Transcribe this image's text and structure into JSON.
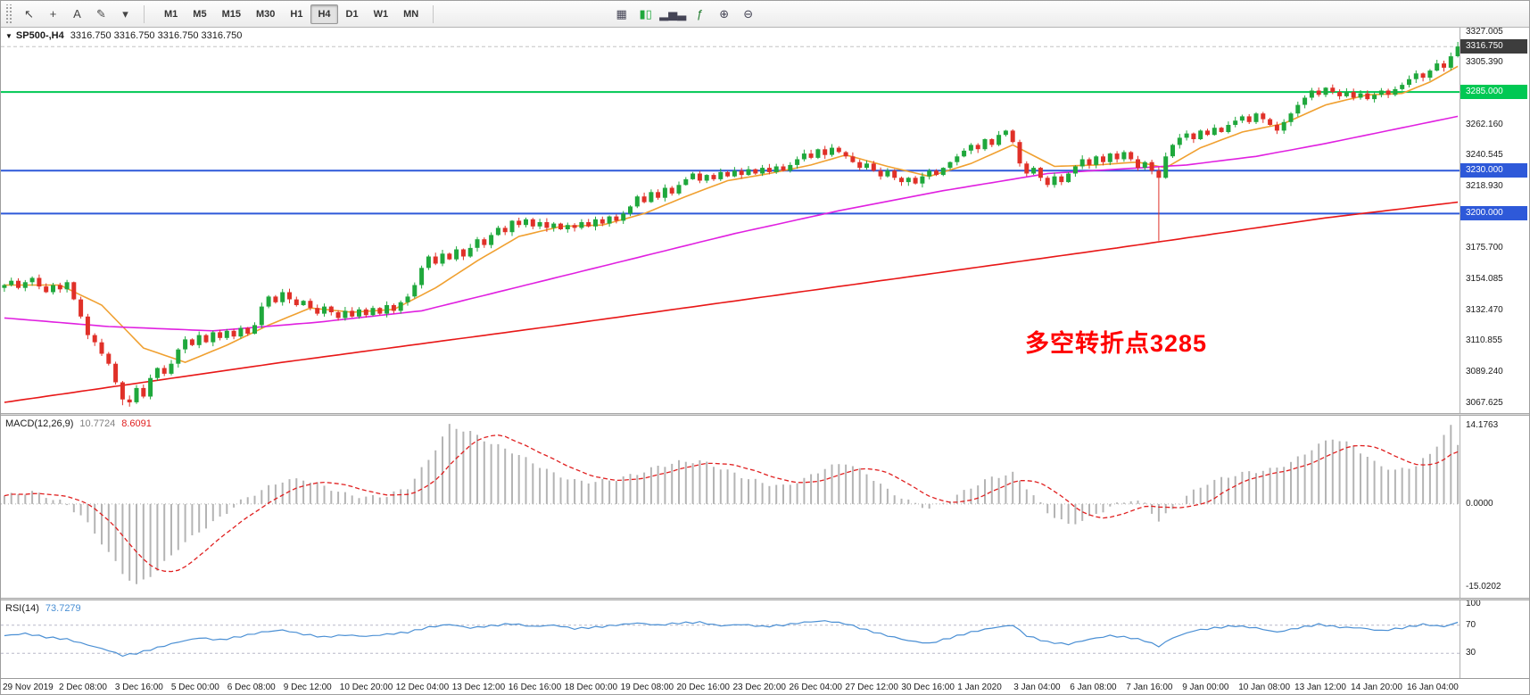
{
  "toolbar": {
    "left_tools": [
      {
        "name": "cursor-icon",
        "glyph": "↖"
      },
      {
        "name": "crosshair-icon",
        "glyph": "+"
      },
      {
        "name": "text-label-icon",
        "glyph": "A"
      },
      {
        "name": "draw-tools-icon",
        "glyph": "✎"
      },
      {
        "name": "dropdown-icon",
        "glyph": "▾"
      }
    ],
    "timeframes": [
      {
        "label": "M1"
      },
      {
        "label": "M5"
      },
      {
        "label": "M15"
      },
      {
        "label": "M30"
      },
      {
        "label": "H1"
      },
      {
        "label": "H4",
        "active": true
      },
      {
        "label": "D1"
      },
      {
        "label": "W1"
      },
      {
        "label": "MN"
      }
    ],
    "right_tools": [
      {
        "name": "tile-windows-icon",
        "glyph": "▦",
        "color": "#445"
      },
      {
        "name": "candlestick-chart-icon",
        "glyph": "▮▯",
        "color": "#1fa83c"
      },
      {
        "name": "bar-chart-icon",
        "glyph": "▂▅▃",
        "color": "#445"
      },
      {
        "name": "indicators-icon",
        "glyph": "ƒ",
        "color": "#1f7a2c"
      },
      {
        "name": "zoom-in-icon",
        "glyph": "⊕",
        "color": "#445"
      },
      {
        "name": "zoom-out-icon",
        "glyph": "⊖",
        "color": "#445"
      }
    ]
  },
  "price_panel": {
    "symbol": "SP500-,H4",
    "ohlc": "3316.750 3316.750 3316.750 3316.750",
    "annotation": "多空转折点3285",
    "annotation_color": "#ff0000"
  },
  "macd_panel": {
    "name": "MACD(12,26,9)",
    "value_main": "10.7724",
    "value_signal": "8.6091"
  },
  "rsi_panel": {
    "name": "RSI(14)",
    "value": "73.7279"
  },
  "chart_data": {
    "type": "candlestick+indicators",
    "symbol": "SP500-",
    "timeframe": "H4",
    "time_labels": [
      "29 Nov 2019",
      "2 Dec 08:00",
      "3 Dec 16:00",
      "5 Dec 00:00",
      "6 Dec 08:00",
      "9 Dec 12:00",
      "10 Dec 20:00",
      "12 Dec 04:00",
      "13 Dec 12:00",
      "16 Dec 16:00",
      "18 Dec 00:00",
      "19 Dec 08:00",
      "20 Dec 16:00",
      "23 Dec 20:00",
      "26 Dec 04:00",
      "27 Dec 12:00",
      "30 Dec 16:00",
      "1 Jan 2020",
      "3 Jan 04:00",
      "6 Jan 08:00",
      "7 Jan 16:00",
      "9 Jan 00:00",
      "10 Jan 08:00",
      "13 Jan 12:00",
      "14 Jan 20:00",
      "16 Jan 04:00"
    ],
    "price": {
      "ylim": [
        3060.5,
        3330
      ],
      "first_open": 3148,
      "closes": [
        3150,
        3153,
        3148,
        3152,
        3155,
        3149,
        3145,
        3150,
        3147,
        3152,
        3140,
        3128,
        3115,
        3110,
        3102,
        3095,
        3082,
        3070,
        3068,
        3078,
        3072,
        3085,
        3092,
        3088,
        3095,
        3105,
        3112,
        3108,
        3115,
        3110,
        3117,
        3113,
        3118,
        3114,
        3120,
        3116,
        3122,
        3135,
        3142,
        3138,
        3145,
        3140,
        3136,
        3139,
        3134,
        3130,
        3135,
        3131,
        3127,
        3132,
        3128,
        3133,
        3129,
        3134,
        3130,
        3136,
        3132,
        3138,
        3142,
        3150,
        3162,
        3170,
        3165,
        3172,
        3168,
        3175,
        3170,
        3176,
        3182,
        3178,
        3185,
        3190,
        3187,
        3195,
        3192,
        3196,
        3191,
        3194,
        3190,
        3193,
        3189,
        3192,
        3190,
        3194,
        3191,
        3196,
        3193,
        3198,
        3195,
        3200,
        3205,
        3212,
        3208,
        3215,
        3211,
        3218,
        3214,
        3220,
        3224,
        3228,
        3223,
        3227,
        3224,
        3229,
        3226,
        3230,
        3227,
        3231,
        3228,
        3232,
        3229,
        3233,
        3230,
        3234,
        3238,
        3242,
        3239,
        3245,
        3241,
        3246,
        3243,
        3240,
        3236,
        3232,
        3235,
        3230,
        3226,
        3230,
        3225,
        3222,
        3225,
        3221,
        3226,
        3230,
        3227,
        3232,
        3236,
        3240,
        3244,
        3248,
        3245,
        3252,
        3248,
        3255,
        3258,
        3250,
        3235,
        3228,
        3232,
        3225,
        3220,
        3226,
        3222,
        3228,
        3233,
        3238,
        3234,
        3240,
        3236,
        3242,
        3238,
        3243,
        3238,
        3232,
        3236,
        3230,
        3225,
        3240,
        3248,
        3253,
        3256,
        3252,
        3258,
        3255,
        3260,
        3257,
        3262,
        3265,
        3268,
        3264,
        3270,
        3266,
        3262,
        3258,
        3264,
        3270,
        3276,
        3281,
        3286,
        3283,
        3288,
        3285,
        3282,
        3285,
        3281,
        3284,
        3280,
        3283,
        3286,
        3283,
        3287,
        3290,
        3294,
        3298,
        3295,
        3300,
        3305,
        3302,
        3310,
        3316.75
      ],
      "special_lows": {
        "17": 3066,
        "18": 3065,
        "166": 3181
      },
      "special_highs": {
        "209": 3320
      },
      "up_color": "#1fa83c",
      "down_color": "#e03028",
      "scale_ticks": [
        "3327.005",
        "3305.390",
        "3283.775",
        "3262.160",
        "3240.545",
        "3218.930",
        "3197.315",
        "3175.700",
        "3154.085",
        "3132.470",
        "3110.855",
        "3089.240",
        "3067.625"
      ],
      "current_price": {
        "value": 3316.75,
        "label": "3316.750",
        "color": "#3d3d3d"
      },
      "hlines": [
        {
          "value": 3285,
          "label": "3285.000",
          "color": "#00c853"
        },
        {
          "value": 3230,
          "label": "3230.000",
          "color": "#2e59d9"
        },
        {
          "value": 3200,
          "label": "3200.000",
          "color": "#2e59d9"
        }
      ],
      "ma_lines": [
        {
          "name": "ma-fast",
          "color": "#f0a030",
          "anchors": [
            [
              0,
              3150
            ],
            [
              8,
              3150
            ],
            [
              14,
              3136
            ],
            [
              20,
              3106
            ],
            [
              26,
              3096
            ],
            [
              32,
              3108
            ],
            [
              38,
              3122
            ],
            [
              44,
              3134
            ],
            [
              50,
              3131
            ],
            [
              56,
              3133
            ],
            [
              62,
              3148
            ],
            [
              68,
              3167
            ],
            [
              74,
              3184
            ],
            [
              80,
              3191
            ],
            [
              86,
              3192
            ],
            [
              92,
              3200
            ],
            [
              98,
              3212
            ],
            [
              104,
              3223
            ],
            [
              110,
              3228
            ],
            [
              116,
              3234
            ],
            [
              121,
              3241
            ],
            [
              127,
              3233
            ],
            [
              133,
              3226
            ],
            [
              139,
              3235
            ],
            [
              145,
              3248
            ],
            [
              151,
              3233
            ],
            [
              157,
              3234
            ],
            [
              163,
              3236
            ],
            [
              167,
              3232
            ],
            [
              172,
              3246
            ],
            [
              178,
              3257
            ],
            [
              184,
              3263
            ],
            [
              190,
              3276
            ],
            [
              196,
              3283
            ],
            [
              201,
              3284
            ],
            [
              205,
              3292
            ],
            [
              209,
              3303
            ]
          ]
        },
        {
          "name": "ma-medium",
          "color": "#e020e0",
          "anchors": [
            [
              0,
              3127
            ],
            [
              15,
              3121
            ],
            [
              30,
              3118
            ],
            [
              45,
              3124
            ],
            [
              60,
              3132
            ],
            [
              75,
              3150
            ],
            [
              90,
              3168
            ],
            [
              105,
              3186
            ],
            [
              120,
              3202
            ],
            [
              135,
              3216
            ],
            [
              150,
              3228
            ],
            [
              160,
              3231
            ],
            [
              170,
              3234
            ],
            [
              180,
              3240
            ],
            [
              190,
              3249
            ],
            [
              200,
              3259
            ],
            [
              209,
              3268
            ]
          ]
        },
        {
          "name": "ma-slow",
          "color": "#e81717",
          "anchors": [
            [
              0,
              3068
            ],
            [
              40,
              3096
            ],
            [
              80,
              3122
            ],
            [
              120,
              3149
            ],
            [
              160,
              3176
            ],
            [
              190,
              3197
            ],
            [
              209,
              3208
            ]
          ]
        }
      ]
    },
    "macd": {
      "ylim": [
        -17,
        16
      ],
      "hist_color": "#b4b4b4",
      "signal_color": "#e02020",
      "scale": [
        {
          "value": 14.1763,
          "label": "14.1763"
        },
        {
          "value": 0,
          "label": "0.0000"
        },
        {
          "value": -15.0202,
          "label": "-15.0202"
        }
      ],
      "anchors": [
        [
          0,
          1.5
        ],
        [
          4,
          2.2
        ],
        [
          8,
          0.5
        ],
        [
          11,
          -2
        ],
        [
          14,
          -7
        ],
        [
          17,
          -12.5
        ],
        [
          19,
          -14.8
        ],
        [
          22,
          -12
        ],
        [
          25,
          -8
        ],
        [
          28,
          -5
        ],
        [
          31,
          -2.5
        ],
        [
          34,
          0.5
        ],
        [
          37,
          2.5
        ],
        [
          40,
          4.2
        ],
        [
          43,
          4.5
        ],
        [
          46,
          3.2
        ],
        [
          49,
          1.8
        ],
        [
          52,
          1.2
        ],
        [
          55,
          1.5
        ],
        [
          58,
          3
        ],
        [
          61,
          8
        ],
        [
          64,
          14.2
        ],
        [
          67,
          13
        ],
        [
          70,
          11
        ],
        [
          73,
          9.5
        ],
        [
          76,
          7.5
        ],
        [
          79,
          5.5
        ],
        [
          82,
          4.2
        ],
        [
          85,
          4
        ],
        [
          88,
          4.5
        ],
        [
          91,
          5.5
        ],
        [
          94,
          6.8
        ],
        [
          97,
          7.6
        ],
        [
          100,
          7.8
        ],
        [
          103,
          6.5
        ],
        [
          106,
          5
        ],
        [
          109,
          3.8
        ],
        [
          112,
          3.2
        ],
        [
          115,
          4.5
        ],
        [
          118,
          6.5
        ],
        [
          121,
          7.5
        ],
        [
          124,
          5.5
        ],
        [
          127,
          2.5
        ],
        [
          130,
          0.5
        ],
        [
          133,
          -0.8
        ],
        [
          136,
          0.8
        ],
        [
          139,
          3
        ],
        [
          142,
          4.8
        ],
        [
          145,
          5.5
        ],
        [
          147,
          3
        ],
        [
          150,
          -1.5
        ],
        [
          153,
          -3.8
        ],
        [
          156,
          -2.5
        ],
        [
          159,
          -0.5
        ],
        [
          162,
          0.8
        ],
        [
          164,
          0
        ],
        [
          166,
          -3
        ],
        [
          168,
          -1
        ],
        [
          170,
          1.5
        ],
        [
          173,
          3.8
        ],
        [
          176,
          5
        ],
        [
          179,
          5.8
        ],
        [
          182,
          6.2
        ],
        [
          185,
          7.5
        ],
        [
          188,
          10
        ],
        [
          191,
          12
        ],
        [
          194,
          10.5
        ],
        [
          197,
          7.5
        ],
        [
          200,
          6
        ],
        [
          203,
          7
        ],
        [
          205,
          9
        ],
        [
          207,
          12.5
        ],
        [
          208,
          14
        ],
        [
          209,
          10.8
        ]
      ]
    },
    "rsi": {
      "ylim": [
        -5,
        105
      ],
      "line_color": "#4a8fd4",
      "levels": [
        70,
        30
      ],
      "scale": [
        {
          "value": 100,
          "label": "100"
        },
        {
          "value": 70,
          "label": "70"
        },
        {
          "value": 30,
          "label": "30"
        }
      ],
      "anchors": [
        [
          0,
          55
        ],
        [
          3,
          58
        ],
        [
          6,
          53
        ],
        [
          9,
          50
        ],
        [
          12,
          42
        ],
        [
          15,
          34
        ],
        [
          17,
          27
        ],
        [
          19,
          30
        ],
        [
          22,
          38
        ],
        [
          25,
          46
        ],
        [
          28,
          52
        ],
        [
          31,
          49
        ],
        [
          34,
          54
        ],
        [
          37,
          60
        ],
        [
          40,
          63
        ],
        [
          43,
          57
        ],
        [
          46,
          53
        ],
        [
          49,
          56
        ],
        [
          52,
          54
        ],
        [
          55,
          57
        ],
        [
          58,
          60
        ],
        [
          61,
          67
        ],
        [
          64,
          71
        ],
        [
          67,
          66
        ],
        [
          70,
          69
        ],
        [
          73,
          72
        ],
        [
          76,
          68
        ],
        [
          79,
          70
        ],
        [
          82,
          65
        ],
        [
          85,
          67
        ],
        [
          88,
          70
        ],
        [
          91,
          73
        ],
        [
          94,
          70
        ],
        [
          97,
          73
        ],
        [
          100,
          74
        ],
        [
          103,
          69
        ],
        [
          106,
          71
        ],
        [
          109,
          68
        ],
        [
          112,
          70
        ],
        [
          115,
          74
        ],
        [
          118,
          76
        ],
        [
          121,
          72
        ],
        [
          124,
          63
        ],
        [
          127,
          55
        ],
        [
          130,
          48
        ],
        [
          133,
          44
        ],
        [
          136,
          52
        ],
        [
          139,
          60
        ],
        [
          142,
          66
        ],
        [
          145,
          70
        ],
        [
          147,
          55
        ],
        [
          150,
          46
        ],
        [
          153,
          43
        ],
        [
          156,
          50
        ],
        [
          159,
          55
        ],
        [
          162,
          52
        ],
        [
          164,
          48
        ],
        [
          166,
          40
        ],
        [
          168,
          52
        ],
        [
          171,
          62
        ],
        [
          174,
          66
        ],
        [
          177,
          69
        ],
        [
          180,
          66
        ],
        [
          183,
          60
        ],
        [
          186,
          66
        ],
        [
          189,
          71
        ],
        [
          192,
          67
        ],
        [
          195,
          66
        ],
        [
          198,
          62
        ],
        [
          201,
          66
        ],
        [
          204,
          71
        ],
        [
          207,
          68
        ],
        [
          209,
          73.7
        ]
      ]
    }
  }
}
